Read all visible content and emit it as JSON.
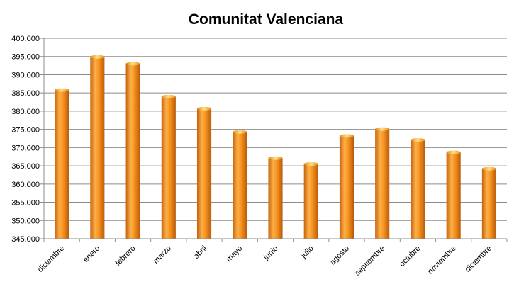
{
  "chart_data": {
    "type": "bar",
    "title": "Comunitat Valenciana",
    "xlabel": "",
    "ylabel": "",
    "categories": [
      "diciembre",
      "enero",
      "febrero",
      "marzo",
      "abril",
      "mayo",
      "junio",
      "julio",
      "agosto",
      "septiembre",
      "octubre",
      "noviembre",
      "diciembre"
    ],
    "values": [
      385800,
      394900,
      393000,
      384000,
      380700,
      374300,
      367100,
      365500,
      373200,
      375100,
      372100,
      368700,
      364200
    ],
    "ylim": [
      345000,
      400000
    ],
    "yticks": [
      345000,
      350000,
      355000,
      360000,
      365000,
      370000,
      375000,
      380000,
      385000,
      390000,
      395000,
      400000
    ],
    "ytick_labels": [
      "345.000",
      "350.000",
      "355.000",
      "360.000",
      "365.000",
      "370.000",
      "375.000",
      "380.000",
      "385.000",
      "390.000",
      "395.000",
      "400.000"
    ],
    "grid": true,
    "legend": "none",
    "bar_color": "#F7931E"
  }
}
